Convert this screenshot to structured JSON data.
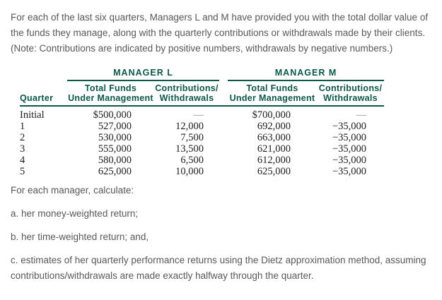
{
  "intro": {
    "text": "For each of the last six quarters, Managers L and M have provided you with the total dollar value of the funds they manage, along with the quarterly contributions or withdrawals made by their clients. (Note: Contributions are indicated by positive numbers, withdrawals by negative numbers.)"
  },
  "table": {
    "group_headers": {
      "manager_l": "MANAGER L",
      "manager_m": "MANAGER M"
    },
    "column_headers": {
      "quarter": "Quarter",
      "total_funds_line1": "Total Funds",
      "total_funds_line2": "Under Management",
      "contributions_line1": "Contributions/",
      "contributions_line2": "Withdrawals"
    },
    "rows": [
      {
        "quarter": "Initial",
        "l_total": "$500,000",
        "l_contrib": "—",
        "m_total": "$700,000",
        "m_contrib": "—"
      },
      {
        "quarter": "1",
        "l_total": "527,000",
        "l_contrib": "12,000",
        "m_total": "692,000",
        "m_contrib": "−35,000"
      },
      {
        "quarter": "2",
        "l_total": "530,000",
        "l_contrib": "7,500",
        "m_total": "663,000",
        "m_contrib": "−35,000"
      },
      {
        "quarter": "3",
        "l_total": "555,000",
        "l_contrib": "13,500",
        "m_total": "621,000",
        "m_contrib": "−35,000"
      },
      {
        "quarter": "4",
        "l_total": "580,000",
        "l_contrib": "6,500",
        "m_total": "612,000",
        "m_contrib": "−35,000"
      },
      {
        "quarter": "5",
        "l_total": "625,000",
        "l_contrib": "10,000",
        "m_total": "625,000",
        "m_contrib": "−35,000"
      }
    ]
  },
  "questions": {
    "lead": "For each manager, calculate:",
    "item_a": "a. her money-weighted return;",
    "item_b": "b. her time-weighted return; and,",
    "item_c": "c. estimates of her quarterly performance returns using the Dietz approximation method, assuming contributions/withdrawals are made exactly halfway through the quarter."
  },
  "colors": {
    "header_green": "#0c574a",
    "body_gray": "#58585a",
    "table_text": "#1d1d1f",
    "dash_gray": "#8a8a8c"
  }
}
